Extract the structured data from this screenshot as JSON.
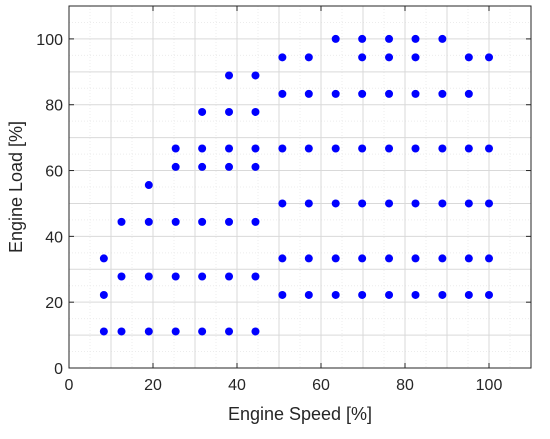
{
  "chart_data": {
    "type": "scatter",
    "title": "",
    "xlabel": "Engine Speed [%]",
    "ylabel": "Engine Load [%]",
    "xlim": [
      0,
      110
    ],
    "ylim": [
      0,
      110
    ],
    "xticks": [
      0,
      20,
      40,
      60,
      80,
      100
    ],
    "yticks": [
      0,
      20,
      40,
      60,
      80,
      100
    ],
    "grid": true,
    "minor_grid": true,
    "marker_color": "#0000ff",
    "points": [
      {
        "x": 8.3,
        "y": 11.1
      },
      {
        "x": 8.3,
        "y": 22.2
      },
      {
        "x": 8.3,
        "y": 33.3
      },
      {
        "x": 12.5,
        "y": 11.1
      },
      {
        "x": 12.5,
        "y": 27.8
      },
      {
        "x": 12.5,
        "y": 44.4
      },
      {
        "x": 19.0,
        "y": 11.1
      },
      {
        "x": 19.0,
        "y": 27.8
      },
      {
        "x": 19.0,
        "y": 44.4
      },
      {
        "x": 19.0,
        "y": 55.6
      },
      {
        "x": 25.4,
        "y": 11.1
      },
      {
        "x": 25.4,
        "y": 27.8
      },
      {
        "x": 25.4,
        "y": 44.4
      },
      {
        "x": 25.4,
        "y": 61.1
      },
      {
        "x": 25.4,
        "y": 66.7
      },
      {
        "x": 31.7,
        "y": 11.1
      },
      {
        "x": 31.7,
        "y": 27.8
      },
      {
        "x": 31.7,
        "y": 44.4
      },
      {
        "x": 31.7,
        "y": 61.1
      },
      {
        "x": 31.7,
        "y": 66.7
      },
      {
        "x": 31.7,
        "y": 77.8
      },
      {
        "x": 38.1,
        "y": 11.1
      },
      {
        "x": 38.1,
        "y": 27.8
      },
      {
        "x": 38.1,
        "y": 44.4
      },
      {
        "x": 38.1,
        "y": 61.1
      },
      {
        "x": 38.1,
        "y": 66.7
      },
      {
        "x": 38.1,
        "y": 77.8
      },
      {
        "x": 38.1,
        "y": 88.9
      },
      {
        "x": 44.4,
        "y": 11.1
      },
      {
        "x": 44.4,
        "y": 27.8
      },
      {
        "x": 44.4,
        "y": 44.4
      },
      {
        "x": 44.4,
        "y": 61.1
      },
      {
        "x": 44.4,
        "y": 66.7
      },
      {
        "x": 44.4,
        "y": 77.8
      },
      {
        "x": 44.4,
        "y": 88.9
      },
      {
        "x": 50.8,
        "y": 22.2
      },
      {
        "x": 50.8,
        "y": 33.3
      },
      {
        "x": 50.8,
        "y": 50.0
      },
      {
        "x": 50.8,
        "y": 66.7
      },
      {
        "x": 50.8,
        "y": 83.3
      },
      {
        "x": 50.8,
        "y": 94.4
      },
      {
        "x": 57.1,
        "y": 22.2
      },
      {
        "x": 57.1,
        "y": 33.3
      },
      {
        "x": 57.1,
        "y": 50.0
      },
      {
        "x": 57.1,
        "y": 66.7
      },
      {
        "x": 57.1,
        "y": 83.3
      },
      {
        "x": 57.1,
        "y": 94.4
      },
      {
        "x": 63.5,
        "y": 22.2
      },
      {
        "x": 63.5,
        "y": 33.3
      },
      {
        "x": 63.5,
        "y": 50.0
      },
      {
        "x": 63.5,
        "y": 66.7
      },
      {
        "x": 63.5,
        "y": 83.3
      },
      {
        "x": 63.5,
        "y": 100.0
      },
      {
        "x": 69.8,
        "y": 22.2
      },
      {
        "x": 69.8,
        "y": 33.3
      },
      {
        "x": 69.8,
        "y": 50.0
      },
      {
        "x": 69.8,
        "y": 66.7
      },
      {
        "x": 69.8,
        "y": 83.3
      },
      {
        "x": 69.8,
        "y": 94.4
      },
      {
        "x": 69.8,
        "y": 100.0
      },
      {
        "x": 76.2,
        "y": 22.2
      },
      {
        "x": 76.2,
        "y": 33.3
      },
      {
        "x": 76.2,
        "y": 50.0
      },
      {
        "x": 76.2,
        "y": 66.7
      },
      {
        "x": 76.2,
        "y": 83.3
      },
      {
        "x": 76.2,
        "y": 94.4
      },
      {
        "x": 76.2,
        "y": 100.0
      },
      {
        "x": 82.5,
        "y": 22.2
      },
      {
        "x": 82.5,
        "y": 33.3
      },
      {
        "x": 82.5,
        "y": 50.0
      },
      {
        "x": 82.5,
        "y": 66.7
      },
      {
        "x": 82.5,
        "y": 83.3
      },
      {
        "x": 82.5,
        "y": 94.4
      },
      {
        "x": 82.5,
        "y": 100.0
      },
      {
        "x": 88.9,
        "y": 22.2
      },
      {
        "x": 88.9,
        "y": 33.3
      },
      {
        "x": 88.9,
        "y": 50.0
      },
      {
        "x": 88.9,
        "y": 66.7
      },
      {
        "x": 88.9,
        "y": 83.3
      },
      {
        "x": 88.9,
        "y": 100.0
      },
      {
        "x": 95.2,
        "y": 22.2
      },
      {
        "x": 95.2,
        "y": 33.3
      },
      {
        "x": 95.2,
        "y": 50.0
      },
      {
        "x": 95.2,
        "y": 66.7
      },
      {
        "x": 95.2,
        "y": 83.3
      },
      {
        "x": 95.2,
        "y": 94.4
      },
      {
        "x": 100.0,
        "y": 22.2
      },
      {
        "x": 100.0,
        "y": 33.3
      },
      {
        "x": 100.0,
        "y": 50.0
      },
      {
        "x": 100.0,
        "y": 66.7
      },
      {
        "x": 100.0,
        "y": 94.4
      }
    ]
  }
}
